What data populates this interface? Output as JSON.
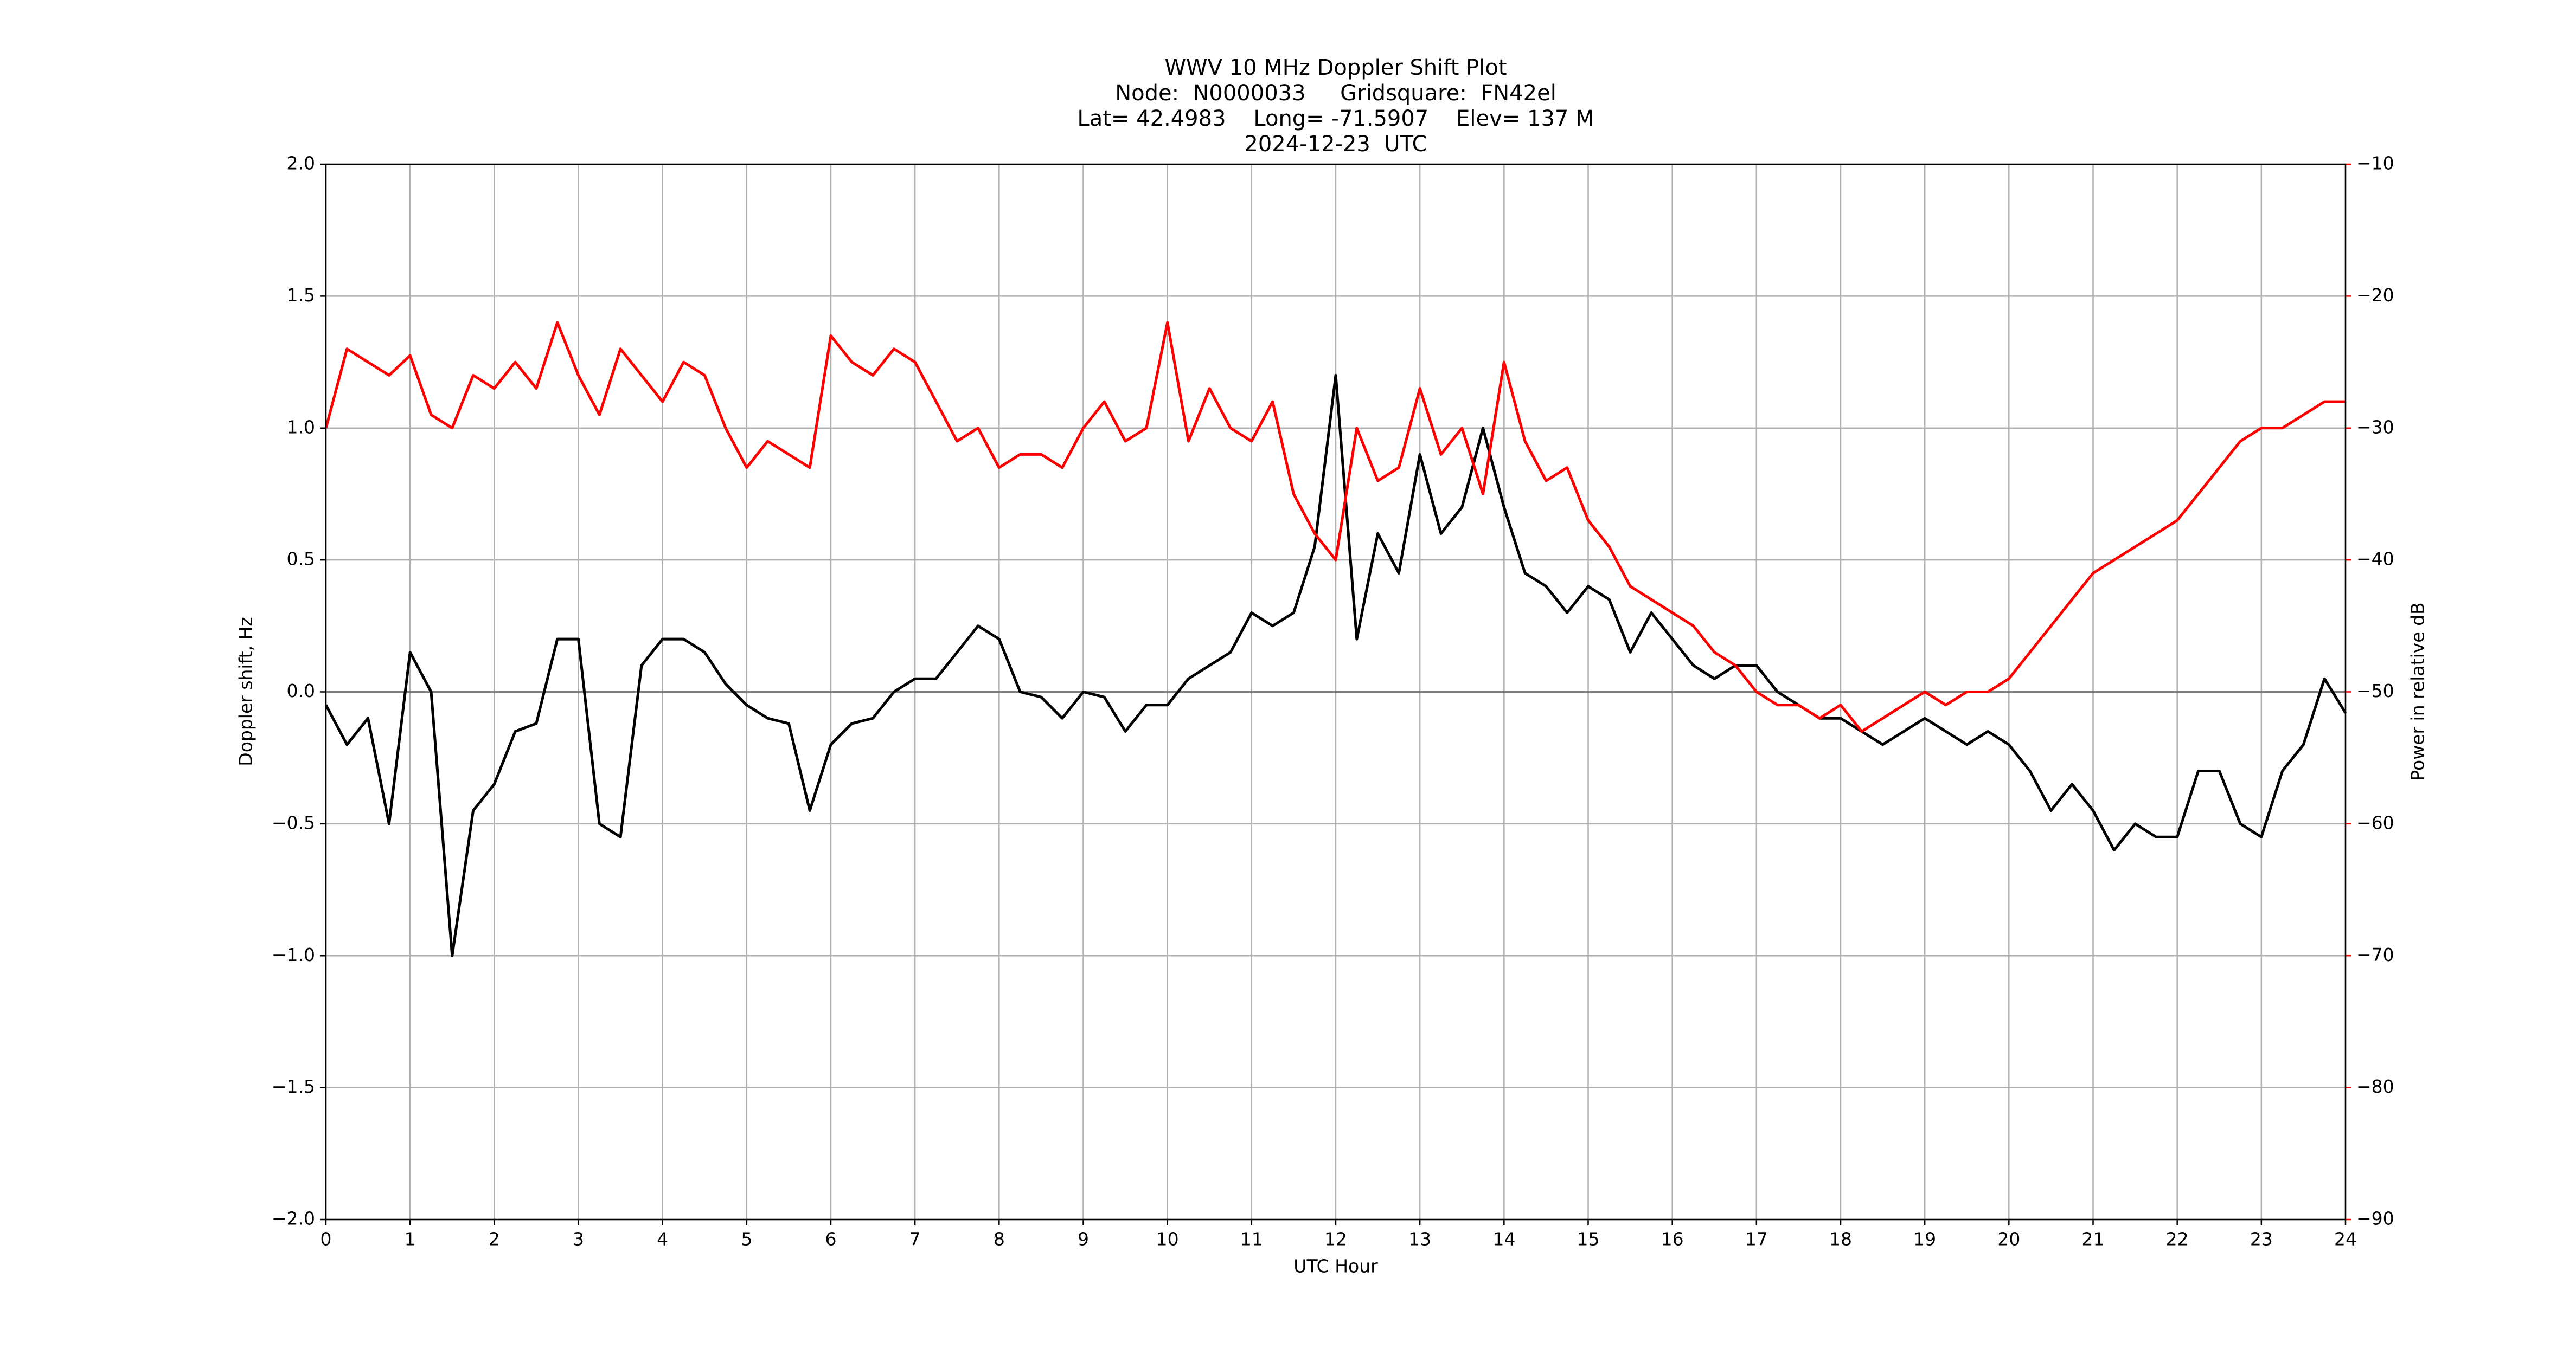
{
  "chart_data": {
    "type": "line",
    "title": "WWV 10 MHz Doppler Shift Plot",
    "subtitle": [
      "Node:  N0000033     Gridsquare:  FN42el",
      "Lat= 42.4983    Long= -71.5907    Elev= 137 M",
      "2024-12-23  UTC"
    ],
    "xlabel": "UTC Hour",
    "ylabel": "Doppler shift, Hz",
    "y2label": "Power in relative dB",
    "x": [
      0,
      0.25,
      0.5,
      0.75,
      1,
      1.25,
      1.5,
      1.75,
      2,
      2.25,
      2.5,
      2.75,
      3,
      3.25,
      3.5,
      3.75,
      4,
      4.25,
      4.5,
      4.75,
      5,
      5.25,
      5.5,
      5.75,
      6,
      6.25,
      6.5,
      6.75,
      7,
      7.25,
      7.5,
      7.75,
      8,
      8.25,
      8.5,
      8.75,
      9,
      9.25,
      9.5,
      9.75,
      10,
      10.25,
      10.5,
      10.75,
      11,
      11.25,
      11.5,
      11.75,
      12,
      12.25,
      12.5,
      12.75,
      13,
      13.25,
      13.5,
      13.75,
      14,
      14.25,
      14.5,
      14.75,
      15,
      15.25,
      15.5,
      15.75,
      16,
      16.25,
      16.5,
      16.75,
      17,
      17.25,
      17.5,
      17.75,
      18,
      18.25,
      18.5,
      18.75,
      19,
      19.25,
      19.5,
      19.75,
      20,
      20.25,
      20.5,
      20.75,
      21,
      21.25,
      21.5,
      21.75,
      22,
      22.25,
      22.5,
      22.75,
      23,
      23.25,
      23.5,
      23.75,
      24
    ],
    "series": [
      {
        "color": "#000000",
        "axis": "y",
        "values": [
          -0.05,
          -0.2,
          -0.1,
          -0.5,
          0.15,
          0,
          -1,
          -0.45,
          -0.35,
          -0.15,
          -0.12,
          0.2,
          0.2,
          -0.5,
          -0.55,
          0.1,
          0.2,
          0.2,
          0.15,
          0.03,
          -0.05,
          -0.1,
          -0.12,
          -0.45,
          -0.2,
          -0.12,
          -0.1,
          0,
          0.05,
          0.05,
          0.15,
          0.25,
          0.2,
          0,
          -0.02,
          -0.1,
          0,
          -0.02,
          -0.15,
          -0.05,
          -0.05,
          0.05,
          0.1,
          0.15,
          0.3,
          0.25,
          0.3,
          0.55,
          1.2,
          0.2,
          0.6,
          0.45,
          0.9,
          0.6,
          0.7,
          1,
          0.7,
          0.45,
          0.4,
          0.3,
          0.4,
          0.35,
          0.15,
          0.3,
          0.2,
          0.1,
          0.05,
          0.1,
          0.1,
          0,
          -0.05,
          -0.1,
          -0.1,
          -0.15,
          -0.2,
          -0.15,
          -0.1,
          -0.15,
          -0.2,
          -0.15,
          -0.2,
          -0.3,
          -0.45,
          -0.35,
          -0.45,
          -0.6,
          -0.5,
          -0.55,
          -0.55,
          -0.3,
          -0.3,
          -0.5,
          -0.55,
          -0.3,
          -0.2,
          0.05,
          -0.08
        ]
      },
      {
        "color": "#ff0000",
        "axis": "y2",
        "values": [
          -30,
          -24,
          -25,
          -26,
          -24.5,
          -29,
          -30,
          -26,
          -27,
          -25,
          -27,
          -22,
          -26,
          -29,
          -24,
          -26,
          -28,
          -25,
          -26,
          -30,
          -33,
          -31,
          -32,
          -33,
          -23,
          -25,
          -26,
          -24,
          -25,
          -28,
          -31,
          -30,
          -33,
          -32,
          -32,
          -33,
          -30,
          -28,
          -31,
          -30,
          -22,
          -31,
          -27,
          -30,
          -31,
          -28,
          -35,
          -38,
          -40,
          -30,
          -34,
          -33,
          -27,
          -32,
          -30,
          -35,
          -25,
          -31,
          -34,
          -33,
          -37,
          -39,
          -42,
          -43,
          -44,
          -45,
          -47,
          -48,
          -50,
          -51,
          -51,
          -52,
          -51,
          -53,
          -52,
          -51,
          -50,
          -51,
          -50,
          -50,
          -49,
          -47,
          -45,
          -43,
          -41,
          -40,
          -39,
          -38,
          -37,
          -35,
          -33,
          -31,
          -30,
          -30,
          -29,
          -28,
          -28
        ]
      }
    ],
    "xlim": [
      0,
      24
    ],
    "xticks": [
      0,
      1,
      2,
      3,
      4,
      5,
      6,
      7,
      8,
      9,
      10,
      11,
      12,
      13,
      14,
      15,
      16,
      17,
      18,
      19,
      20,
      21,
      22,
      23,
      24
    ],
    "ylim": [
      -2,
      2
    ],
    "yticks": [
      {
        "value": -2,
        "label": "−2.0"
      },
      {
        "value": -1.5,
        "label": "−1.5"
      },
      {
        "value": -1,
        "label": "−1.0"
      },
      {
        "value": -0.5,
        "label": "−0.5"
      },
      {
        "value": 0,
        "label": "0.0"
      },
      0.5,
      {
        "value": 1,
        "label": "1.0"
      },
      1.5,
      {
        "value": 2,
        "label": "2.0"
      }
    ],
    "y2lim": [
      -90,
      -10
    ],
    "y2ticks": [
      {
        "value": -90,
        "label": "−90"
      },
      {
        "value": -80,
        "label": "−80"
      },
      {
        "value": -70,
        "label": "−70"
      },
      {
        "value": -60,
        "label": "−60"
      },
      {
        "value": -50,
        "label": "−50"
      },
      {
        "value": -40,
        "label": "−40"
      },
      {
        "value": -30,
        "label": "−30"
      },
      {
        "value": -20,
        "label": "−20"
      },
      {
        "value": -10,
        "label": "−10"
      }
    ],
    "grid": true,
    "reference_line": 0
  }
}
